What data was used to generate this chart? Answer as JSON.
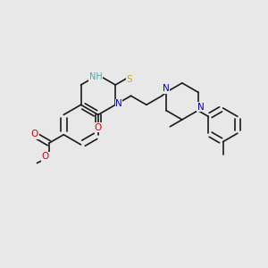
{
  "background_color": "#e8e8e8",
  "fig_width": 3.0,
  "fig_height": 3.0,
  "dpi": 100,
  "bond_color": "#1a1a1a",
  "bond_lw": 1.2,
  "xlim": [
    0.0,
    1.0
  ],
  "ylim": [
    0.0,
    1.0
  ],
  "colors": {
    "O": "#dd0000",
    "N": "#0000cc",
    "S": "#ccaa00",
    "NH": "#4aabab",
    "black": "#1a1a1a"
  }
}
